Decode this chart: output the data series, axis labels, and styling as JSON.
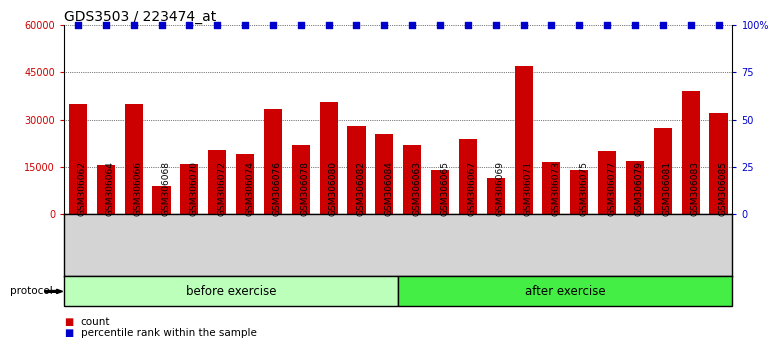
{
  "title": "GDS3503 / 223474_at",
  "categories": [
    "GSM306062",
    "GSM306064",
    "GSM306066",
    "GSM306068",
    "GSM306070",
    "GSM306072",
    "GSM306074",
    "GSM306076",
    "GSM306078",
    "GSM306080",
    "GSM306082",
    "GSM306084",
    "GSM306063",
    "GSM306065",
    "GSM306067",
    "GSM306069",
    "GSM306071",
    "GSM306073",
    "GSM306075",
    "GSM306077",
    "GSM306079",
    "GSM306081",
    "GSM306083",
    "GSM306085"
  ],
  "bar_values": [
    35000,
    15500,
    35000,
    9000,
    16000,
    20500,
    19000,
    33500,
    22000,
    35500,
    28000,
    25500,
    22000,
    14000,
    24000,
    11500,
    47000,
    16500,
    14000,
    20000,
    17000,
    27500,
    39000,
    32000
  ],
  "percentile_values": [
    100,
    100,
    100,
    100,
    100,
    100,
    100,
    100,
    100,
    100,
    100,
    100,
    100,
    100,
    100,
    100,
    100,
    100,
    100,
    100,
    100,
    100,
    100,
    100
  ],
  "bar_color": "#cc0000",
  "percentile_color": "#0000cc",
  "ylim_left": [
    0,
    60000
  ],
  "ylim_right": [
    0,
    100
  ],
  "yticks_left": [
    0,
    15000,
    30000,
    45000,
    60000
  ],
  "yticks_right": [
    0,
    25,
    50,
    75,
    100
  ],
  "ytick_labels_left": [
    "0",
    "15000",
    "30000",
    "45000",
    "60000"
  ],
  "ytick_labels_right": [
    "0",
    "25",
    "50",
    "75",
    "100%"
  ],
  "before_count": 12,
  "before_label": "before exercise",
  "after_label": "after exercise",
  "before_color": "#bbffbb",
  "after_color": "#44ee44",
  "protocol_label": "protocol",
  "legend_count_label": "count",
  "legend_percentile_label": "percentile rank within the sample",
  "title_fontsize": 10,
  "tick_fontsize": 7,
  "label_fontsize": 6.5,
  "bar_width": 0.65
}
